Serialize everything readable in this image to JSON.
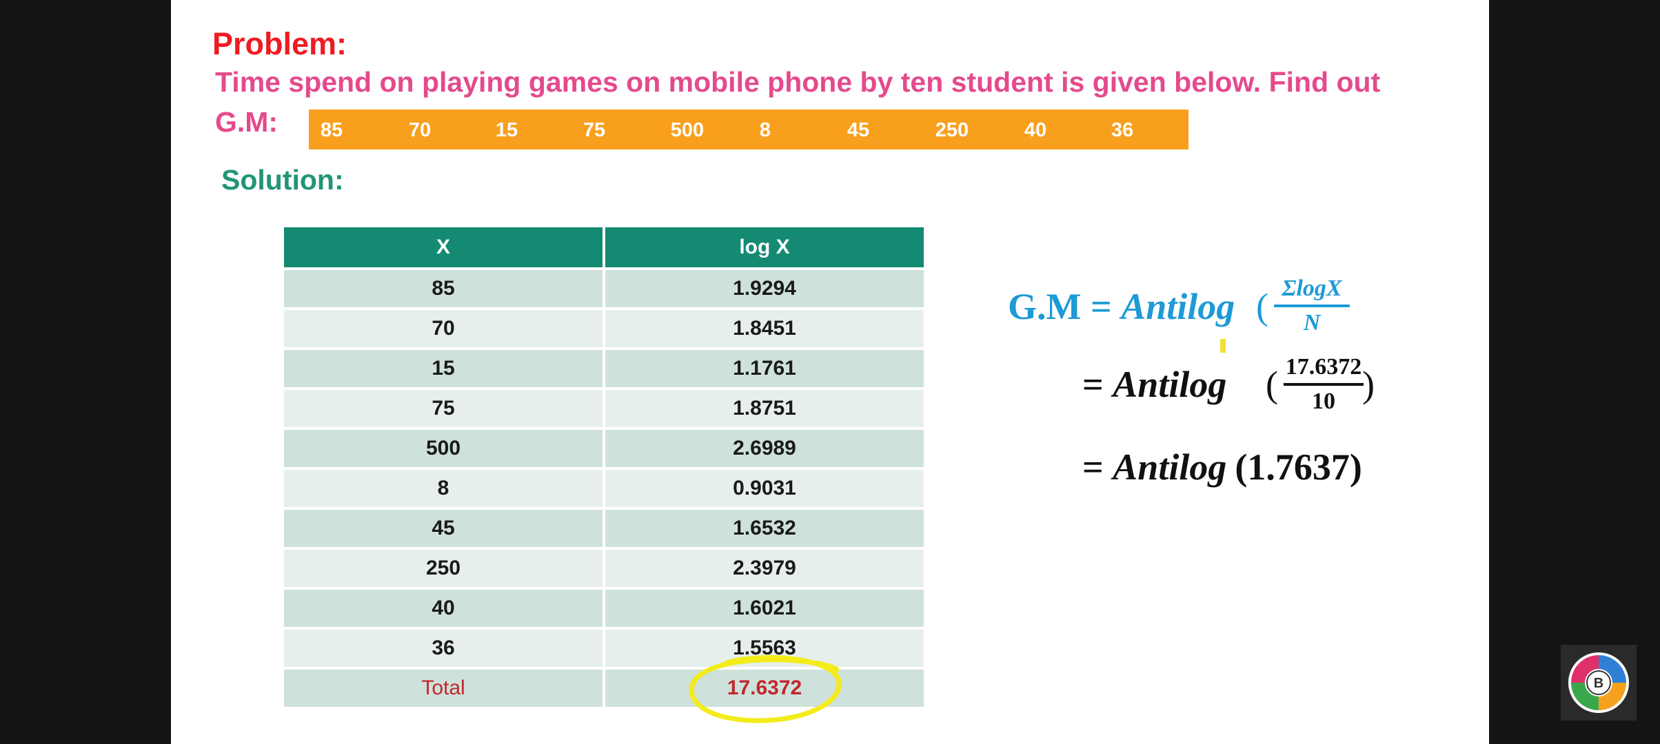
{
  "problem": {
    "heading": "Problem:",
    "text": "Time spend on playing games on mobile phone by ten student is given below. Find out",
    "gm_label": "G.M:",
    "values": [
      "85",
      "70",
      "15",
      "75",
      "500",
      "8",
      "45",
      "250",
      "40",
      "36"
    ]
  },
  "solution": {
    "heading": "Solution:",
    "table": {
      "headers": [
        "X",
        "log X"
      ],
      "rows": [
        [
          "85",
          "1.9294"
        ],
        [
          "70",
          "1.8451"
        ],
        [
          "15",
          "1.1761"
        ],
        [
          "75",
          "1.8751"
        ],
        [
          "500",
          "2.6989"
        ],
        [
          "8",
          "0.9031"
        ],
        [
          "45",
          "1.6532"
        ],
        [
          "250",
          "2.3979"
        ],
        [
          "40",
          "1.6021"
        ],
        [
          "36",
          "1.5563"
        ]
      ],
      "total_label": "Total",
      "total_value": "17.6372"
    }
  },
  "formula": {
    "line1_lhs": "G.M = ",
    "line1_func": "Antilog",
    "line1_num": "ΣlogX",
    "line1_den": "N",
    "line2_lhs": "= ",
    "line2_func": "Antilog",
    "line2_num": "17.6372",
    "line2_den": "10",
    "line3_lhs": "= ",
    "line3_func": "Antilog",
    "line3_arg": "(1.7637)",
    "open_paren": "(",
    "close_paren": ")"
  },
  "colors": {
    "problem_heading": "#ef1b22",
    "problem_text": "#e44a8c",
    "data_bar": "#f8a01e",
    "solution_heading": "#229576",
    "table_header": "#148a73",
    "formula_blue": "#1e9ad6",
    "total_red": "#c1272d",
    "highlight_circle": "#f3ec1a"
  }
}
